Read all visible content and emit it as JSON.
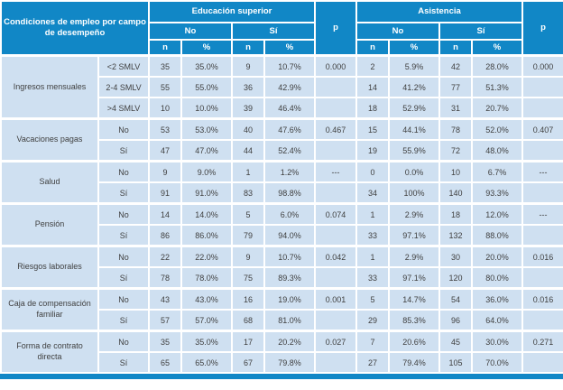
{
  "table": {
    "title_cell": "Condiciones de empleo por campo de desempeño",
    "header": {
      "group_edu": "Educación superior",
      "group_asis": "Asistencia",
      "no": "No",
      "si": "Sí",
      "n": "n",
      "pct": "%",
      "p": "p"
    },
    "colors": {
      "header_blue": "#1187c6",
      "row_blue": "#cfe0f1",
      "grid_white": "#ffffff",
      "body_text": "#3f3f3f",
      "header_text": "#ffffff"
    },
    "groups": [
      {
        "label": "Ingresos mensuales",
        "rows": [
          {
            "sub": "<2 SMLV",
            "values": [
              "35",
              "35.0%",
              "9",
              "10.7%",
              "0.000",
              "2",
              "5.9%",
              "42",
              "28.0%",
              "0.000"
            ]
          },
          {
            "sub": "2-4 SMLV",
            "values": [
              "55",
              "55.0%",
              "36",
              "42.9%",
              "",
              "14",
              "41.2%",
              "77",
              "51.3%",
              ""
            ]
          },
          {
            "sub": ">4 SMLV",
            "values": [
              "10",
              "10.0%",
              "39",
              "46.4%",
              "",
              "18",
              "52.9%",
              "31",
              "20.7%",
              ""
            ]
          }
        ]
      },
      {
        "label": "Vacaciones pagas",
        "rows": [
          {
            "sub": "No",
            "values": [
              "53",
              "53.0%",
              "40",
              "47.6%",
              "0.467",
              "15",
              "44.1%",
              "78",
              "52.0%",
              "0.407"
            ]
          },
          {
            "sub": "Sí",
            "values": [
              "47",
              "47.0%",
              "44",
              "52.4%",
              "",
              "19",
              "55.9%",
              "72",
              "48.0%",
              ""
            ]
          }
        ]
      },
      {
        "label": "Salud",
        "rows": [
          {
            "sub": "No",
            "values": [
              "9",
              "9.0%",
              "1",
              "1.2%",
              "---",
              "0",
              "0.0%",
              "10",
              "6.7%",
              "---"
            ]
          },
          {
            "sub": "Sí",
            "values": [
              "91",
              "91.0%",
              "83",
              "98.8%",
              "",
              "34",
              "100%",
              "140",
              "93.3%",
              ""
            ]
          }
        ]
      },
      {
        "label": "Pensión",
        "rows": [
          {
            "sub": "No",
            "values": [
              "14",
              "14.0%",
              "5",
              "6.0%",
              "0.074",
              "1",
              "2.9%",
              "18",
              "12.0%",
              "---"
            ]
          },
          {
            "sub": "Sí",
            "values": [
              "86",
              "86.0%",
              "79",
              "94.0%",
              "",
              "33",
              "97.1%",
              "132",
              "88.0%",
              ""
            ]
          }
        ]
      },
      {
        "label": "Riesgos laborales",
        "rows": [
          {
            "sub": "No",
            "values": [
              "22",
              "22.0%",
              "9",
              "10.7%",
              "0.042",
              "1",
              "2.9%",
              "30",
              "20.0%",
              "0.016"
            ]
          },
          {
            "sub": "Sí",
            "values": [
              "78",
              "78.0%",
              "75",
              "89.3%",
              "",
              "33",
              "97.1%",
              "120",
              "80.0%",
              ""
            ]
          }
        ]
      },
      {
        "label": "Caja de compensación familiar",
        "rows": [
          {
            "sub": "No",
            "values": [
              "43",
              "43.0%",
              "16",
              "19.0%",
              "0.001",
              "5",
              "14.7%",
              "54",
              "36.0%",
              "0.016"
            ]
          },
          {
            "sub": "Sí",
            "values": [
              "57",
              "57.0%",
              "68",
              "81.0%",
              "",
              "29",
              "85.3%",
              "96",
              "64.0%",
              ""
            ]
          }
        ]
      },
      {
        "label": "Forma de contrato directa",
        "rows": [
          {
            "sub": "No",
            "values": [
              "35",
              "35.0%",
              "17",
              "20.2%",
              "0.027",
              "7",
              "20.6%",
              "45",
              "30.0%",
              "0.271"
            ]
          },
          {
            "sub": "Sí",
            "values": [
              "65",
              "65.0%",
              "67",
              "79.8%",
              "",
              "27",
              "79.4%",
              "105",
              "70.0%",
              ""
            ]
          }
        ]
      }
    ]
  }
}
